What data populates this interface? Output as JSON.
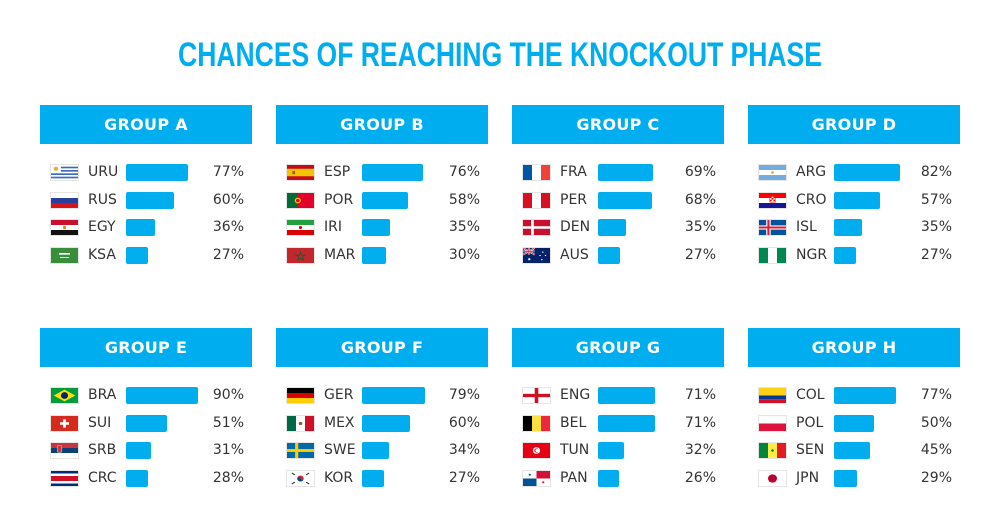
{
  "title": "CHANCES OF REACHING THE KNOCKOUT PHASE",
  "colors": {
    "accent": "#00aeef",
    "text": "#333333",
    "header_text": "#ffffff"
  },
  "groups": [
    {
      "label": "GROUP A",
      "teams": [
        {
          "code": "URU",
          "pct": "77%",
          "value": 77,
          "flag": "uruguay-flag"
        },
        {
          "code": "RUS",
          "pct": "60%",
          "value": 60,
          "flag": "russia-flag"
        },
        {
          "code": "EGY",
          "pct": "36%",
          "value": 36,
          "flag": "egypt-flag"
        },
        {
          "code": "KSA",
          "pct": "27%",
          "value": 27,
          "flag": "saudi-arabia-flag"
        }
      ]
    },
    {
      "label": "GROUP B",
      "teams": [
        {
          "code": "ESP",
          "pct": "76%",
          "value": 76,
          "flag": "spain-flag"
        },
        {
          "code": "POR",
          "pct": "58%",
          "value": 58,
          "flag": "portugal-flag"
        },
        {
          "code": "IRI",
          "pct": "35%",
          "value": 35,
          "flag": "iran-flag"
        },
        {
          "code": "MAR",
          "pct": "30%",
          "value": 30,
          "flag": "morocco-flag"
        }
      ]
    },
    {
      "label": "GROUP C",
      "teams": [
        {
          "code": "FRA",
          "pct": "69%",
          "value": 69,
          "flag": "france-flag"
        },
        {
          "code": "PER",
          "pct": "68%",
          "value": 68,
          "flag": "peru-flag"
        },
        {
          "code": "DEN",
          "pct": "35%",
          "value": 35,
          "flag": "denmark-flag"
        },
        {
          "code": "AUS",
          "pct": "27%",
          "value": 27,
          "flag": "australia-flag"
        }
      ]
    },
    {
      "label": "GROUP D",
      "teams": [
        {
          "code": "ARG",
          "pct": "82%",
          "value": 82,
          "flag": "argentina-flag"
        },
        {
          "code": "CRO",
          "pct": "57%",
          "value": 57,
          "flag": "croatia-flag"
        },
        {
          "code": "ISL",
          "pct": "35%",
          "value": 35,
          "flag": "iceland-flag"
        },
        {
          "code": "NGR",
          "pct": "27%",
          "value": 27,
          "flag": "nigeria-flag"
        }
      ]
    },
    {
      "label": "GROUP E",
      "teams": [
        {
          "code": "BRA",
          "pct": "90%",
          "value": 90,
          "flag": "brazil-flag"
        },
        {
          "code": "SUI",
          "pct": "51%",
          "value": 51,
          "flag": "switzerland-flag"
        },
        {
          "code": "SRB",
          "pct": "31%",
          "value": 31,
          "flag": "serbia-flag"
        },
        {
          "code": "CRC",
          "pct": "28%",
          "value": 28,
          "flag": "costa-rica-flag"
        }
      ]
    },
    {
      "label": "GROUP F",
      "teams": [
        {
          "code": "GER",
          "pct": "79%",
          "value": 79,
          "flag": "germany-flag"
        },
        {
          "code": "MEX",
          "pct": "60%",
          "value": 60,
          "flag": "mexico-flag"
        },
        {
          "code": "SWE",
          "pct": "34%",
          "value": 34,
          "flag": "sweden-flag"
        },
        {
          "code": "KOR",
          "pct": "27%",
          "value": 27,
          "flag": "south-korea-flag"
        }
      ]
    },
    {
      "label": "GROUP G",
      "teams": [
        {
          "code": "ENG",
          "pct": "71%",
          "value": 71,
          "flag": "england-flag"
        },
        {
          "code": "BEL",
          "pct": "71%",
          "value": 71,
          "flag": "belgium-flag"
        },
        {
          "code": "TUN",
          "pct": "32%",
          "value": 32,
          "flag": "tunisia-flag"
        },
        {
          "code": "PAN",
          "pct": "26%",
          "value": 26,
          "flag": "panama-flag"
        }
      ]
    },
    {
      "label": "GROUP H",
      "teams": [
        {
          "code": "COL",
          "pct": "77%",
          "value": 77,
          "flag": "colombia-flag"
        },
        {
          "code": "POL",
          "pct": "50%",
          "value": 50,
          "flag": "poland-flag"
        },
        {
          "code": "SEN",
          "pct": "45%",
          "value": 45,
          "flag": "senegal-flag"
        },
        {
          "code": "JPN",
          "pct": "29%",
          "value": 29,
          "flag": "japan-flag"
        }
      ]
    }
  ],
  "chart_data": {
    "type": "bar",
    "title": "CHANCES OF REACHING THE KNOCKOUT PHASE",
    "orientation": "horizontal",
    "unit": "%",
    "xlim": [
      0,
      100
    ],
    "grid": false,
    "legend": "none",
    "panels": [
      {
        "title": "GROUP A",
        "categories": [
          "URU",
          "RUS",
          "EGY",
          "KSA"
        ],
        "values": [
          77,
          60,
          36,
          27
        ]
      },
      {
        "title": "GROUP B",
        "categories": [
          "ESP",
          "POR",
          "IRI",
          "MAR"
        ],
        "values": [
          76,
          58,
          35,
          30
        ]
      },
      {
        "title": "GROUP C",
        "categories": [
          "FRA",
          "PER",
          "DEN",
          "AUS"
        ],
        "values": [
          69,
          68,
          35,
          27
        ]
      },
      {
        "title": "GROUP D",
        "categories": [
          "ARG",
          "CRO",
          "ISL",
          "NGR"
        ],
        "values": [
          82,
          57,
          35,
          27
        ]
      },
      {
        "title": "GROUP E",
        "categories": [
          "BRA",
          "SUI",
          "SRB",
          "CRC"
        ],
        "values": [
          90,
          51,
          31,
          28
        ]
      },
      {
        "title": "GROUP F",
        "categories": [
          "GER",
          "MEX",
          "SWE",
          "KOR"
        ],
        "values": [
          79,
          60,
          34,
          27
        ]
      },
      {
        "title": "GROUP G",
        "categories": [
          "ENG",
          "BEL",
          "TUN",
          "PAN"
        ],
        "values": [
          71,
          71,
          32,
          26
        ]
      },
      {
        "title": "GROUP H",
        "categories": [
          "COL",
          "POL",
          "SEN",
          "JPN"
        ],
        "values": [
          77,
          50,
          45,
          29
        ]
      }
    ]
  }
}
